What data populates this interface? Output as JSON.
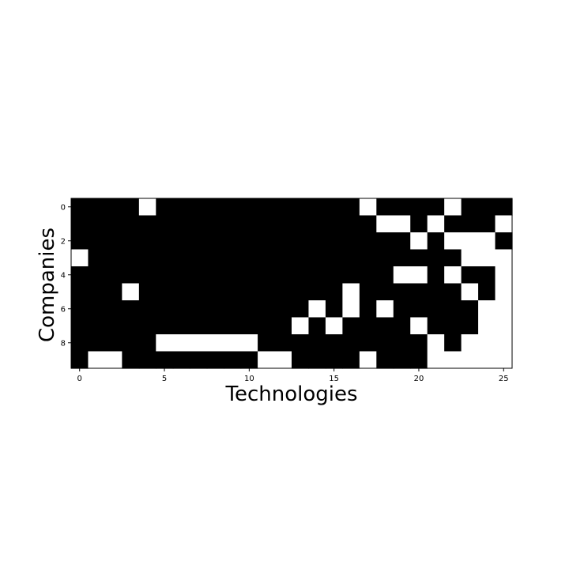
{
  "chart_data": {
    "type": "heatmap",
    "title": "",
    "xlabel": "Technologies",
    "ylabel": "Companies",
    "x_ticks": [
      0,
      5,
      10,
      15,
      20,
      25
    ],
    "y_ticks": [
      0,
      2,
      4,
      6,
      8
    ],
    "x_range": [
      -0.5,
      25.5
    ],
    "y_range": [
      -0.5,
      9.5
    ],
    "y_inverted": true,
    "grid": false,
    "colors": {
      "value_1": "#000000",
      "value_0": "#ffffff"
    },
    "rows": [
      [
        1,
        1,
        1,
        1,
        0,
        1,
        1,
        1,
        1,
        1,
        1,
        1,
        1,
        1,
        1,
        1,
        1,
        0,
        1,
        1,
        1,
        1,
        0,
        1,
        1,
        1
      ],
      [
        1,
        1,
        1,
        1,
        1,
        1,
        1,
        1,
        1,
        1,
        1,
        1,
        1,
        1,
        1,
        1,
        1,
        1,
        0,
        0,
        1,
        0,
        1,
        1,
        1,
        0
      ],
      [
        1,
        1,
        1,
        1,
        1,
        1,
        1,
        1,
        1,
        1,
        1,
        1,
        1,
        1,
        1,
        1,
        1,
        1,
        1,
        1,
        0,
        1,
        0,
        0,
        0,
        1
      ],
      [
        0,
        1,
        1,
        1,
        1,
        1,
        1,
        1,
        1,
        1,
        1,
        1,
        1,
        1,
        1,
        1,
        1,
        1,
        1,
        1,
        1,
        1,
        1,
        0,
        0,
        0
      ],
      [
        1,
        1,
        1,
        1,
        1,
        1,
        1,
        1,
        1,
        1,
        1,
        1,
        1,
        1,
        1,
        1,
        1,
        1,
        1,
        0,
        0,
        1,
        0,
        1,
        1,
        0
      ],
      [
        1,
        1,
        1,
        0,
        1,
        1,
        1,
        1,
        1,
        1,
        1,
        1,
        1,
        1,
        1,
        1,
        0,
        1,
        1,
        1,
        1,
        1,
        1,
        0,
        1,
        0
      ],
      [
        1,
        1,
        1,
        1,
        1,
        1,
        1,
        1,
        1,
        1,
        1,
        1,
        1,
        1,
        0,
        1,
        0,
        1,
        0,
        1,
        1,
        1,
        1,
        1,
        0,
        0
      ],
      [
        1,
        1,
        1,
        1,
        1,
        1,
        1,
        1,
        1,
        1,
        1,
        1,
        1,
        0,
        1,
        0,
        1,
        1,
        1,
        1,
        0,
        1,
        1,
        1,
        0,
        0
      ],
      [
        1,
        1,
        1,
        1,
        1,
        0,
        0,
        0,
        0,
        0,
        0,
        1,
        1,
        1,
        1,
        1,
        1,
        1,
        1,
        1,
        1,
        0,
        1,
        0,
        0,
        0
      ],
      [
        1,
        0,
        0,
        1,
        1,
        1,
        1,
        1,
        1,
        1,
        1,
        0,
        0,
        1,
        1,
        1,
        1,
        0,
        1,
        1,
        1,
        0,
        0,
        0,
        0,
        0
      ]
    ]
  }
}
